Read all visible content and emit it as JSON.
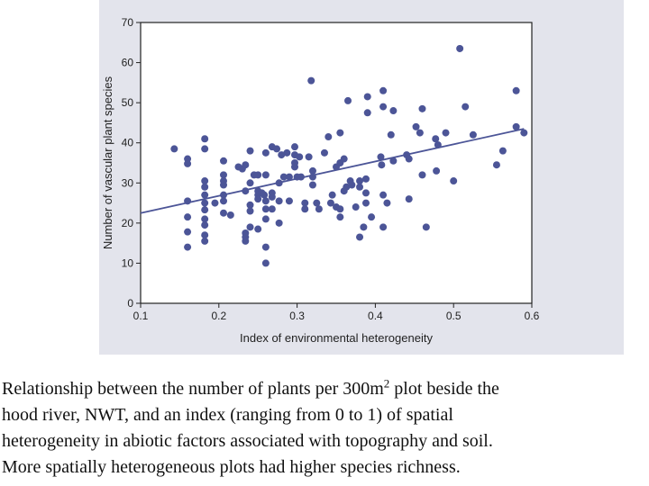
{
  "chart_data": {
    "type": "scatter",
    "xlabel": "Index of environmental heterogeneity",
    "ylabel": "Number of vascular plant species",
    "xlim": [
      0.1,
      0.6
    ],
    "ylim": [
      0,
      70
    ],
    "xticks": [
      "0.1",
      "0.2",
      "0.3",
      "0.4",
      "0.5",
      "0.6"
    ],
    "yticks": [
      "0",
      "10",
      "20",
      "30",
      "40",
      "50",
      "60",
      "70"
    ],
    "trendline": {
      "x": [
        0.1,
        0.59
      ],
      "y": [
        22.5,
        43.5
      ]
    },
    "points": [
      [
        0.143,
        38.5
      ],
      [
        0.16,
        36
      ],
      [
        0.16,
        34.8
      ],
      [
        0.16,
        25.5
      ],
      [
        0.16,
        21.5
      ],
      [
        0.16,
        17.8
      ],
      [
        0.16,
        14
      ],
      [
        0.182,
        41
      ],
      [
        0.182,
        38.5
      ],
      [
        0.182,
        30.5
      ],
      [
        0.182,
        29
      ],
      [
        0.182,
        27
      ],
      [
        0.182,
        25
      ],
      [
        0.182,
        23.3
      ],
      [
        0.182,
        21
      ],
      [
        0.182,
        19.5
      ],
      [
        0.182,
        17
      ],
      [
        0.182,
        15.5
      ],
      [
        0.195,
        25
      ],
      [
        0.206,
        35.5
      ],
      [
        0.206,
        32
      ],
      [
        0.206,
        30.5
      ],
      [
        0.206,
        29.5
      ],
      [
        0.206,
        27
      ],
      [
        0.206,
        25.5
      ],
      [
        0.206,
        22.5
      ],
      [
        0.215,
        22
      ],
      [
        0.225,
        34
      ],
      [
        0.23,
        33.5
      ],
      [
        0.234,
        34.5
      ],
      [
        0.234,
        28
      ],
      [
        0.234,
        17.5
      ],
      [
        0.234,
        16.5
      ],
      [
        0.234,
        15.5
      ],
      [
        0.24,
        38
      ],
      [
        0.24,
        30
      ],
      [
        0.24,
        24.5
      ],
      [
        0.24,
        23
      ],
      [
        0.24,
        19
      ],
      [
        0.245,
        32
      ],
      [
        0.25,
        32
      ],
      [
        0.25,
        28
      ],
      [
        0.25,
        27
      ],
      [
        0.25,
        26
      ],
      [
        0.25,
        18.5
      ],
      [
        0.255,
        27.5
      ],
      [
        0.258,
        27
      ],
      [
        0.26,
        37.5
      ],
      [
        0.26,
        32
      ],
      [
        0.26,
        25.5
      ],
      [
        0.26,
        23.5
      ],
      [
        0.26,
        21
      ],
      [
        0.26,
        14
      ],
      [
        0.26,
        10
      ],
      [
        0.268,
        39
      ],
      [
        0.268,
        27.5
      ],
      [
        0.268,
        26.5
      ],
      [
        0.268,
        23.5
      ],
      [
        0.274,
        38.5
      ],
      [
        0.277,
        30
      ],
      [
        0.277,
        25.5
      ],
      [
        0.277,
        20
      ],
      [
        0.28,
        37
      ],
      [
        0.283,
        31.5
      ],
      [
        0.287,
        37.5
      ],
      [
        0.29,
        25.5
      ],
      [
        0.29,
        31.5
      ],
      [
        0.297,
        39
      ],
      [
        0.297,
        37
      ],
      [
        0.297,
        35
      ],
      [
        0.297,
        34
      ],
      [
        0.3,
        31.5
      ],
      [
        0.303,
        36.5
      ],
      [
        0.305,
        31.5
      ],
      [
        0.31,
        25
      ],
      [
        0.31,
        23.5
      ],
      [
        0.315,
        36.5
      ],
      [
        0.318,
        55.5
      ],
      [
        0.32,
        33
      ],
      [
        0.32,
        31.5
      ],
      [
        0.32,
        29.5
      ],
      [
        0.325,
        25
      ],
      [
        0.328,
        23.5
      ],
      [
        0.335,
        37.5
      ],
      [
        0.34,
        41.5
      ],
      [
        0.343,
        25
      ],
      [
        0.345,
        27
      ],
      [
        0.35,
        34
      ],
      [
        0.35,
        24
      ],
      [
        0.355,
        42.5
      ],
      [
        0.355,
        35
      ],
      [
        0.355,
        23.5
      ],
      [
        0.355,
        21.5
      ],
      [
        0.36,
        36
      ],
      [
        0.36,
        28
      ],
      [
        0.363,
        29
      ],
      [
        0.365,
        50.5
      ],
      [
        0.368,
        30.5
      ],
      [
        0.37,
        29.5
      ],
      [
        0.375,
        24
      ],
      [
        0.38,
        30.5
      ],
      [
        0.38,
        29
      ],
      [
        0.38,
        16.5
      ],
      [
        0.385,
        19
      ],
      [
        0.388,
        31
      ],
      [
        0.388,
        27.5
      ],
      [
        0.388,
        25
      ],
      [
        0.39,
        51.5
      ],
      [
        0.39,
        47.5
      ],
      [
        0.395,
        21.5
      ],
      [
        0.407,
        36.5
      ],
      [
        0.408,
        34.5
      ],
      [
        0.41,
        53
      ],
      [
        0.41,
        49
      ],
      [
        0.41,
        27
      ],
      [
        0.41,
        19
      ],
      [
        0.415,
        25
      ],
      [
        0.42,
        42
      ],
      [
        0.423,
        48
      ],
      [
        0.423,
        35.5
      ],
      [
        0.44,
        37
      ],
      [
        0.443,
        36
      ],
      [
        0.443,
        26
      ],
      [
        0.452,
        44
      ],
      [
        0.457,
        42.5
      ],
      [
        0.46,
        48.5
      ],
      [
        0.46,
        32
      ],
      [
        0.465,
        19
      ],
      [
        0.477,
        41
      ],
      [
        0.478,
        33
      ],
      [
        0.48,
        39.5
      ],
      [
        0.49,
        42.5
      ],
      [
        0.5,
        30.5
      ],
      [
        0.508,
        63.5
      ],
      [
        0.515,
        49
      ],
      [
        0.525,
        42
      ],
      [
        0.555,
        34.5
      ],
      [
        0.563,
        38
      ],
      [
        0.58,
        53
      ],
      [
        0.58,
        44
      ],
      [
        0.59,
        42.5
      ]
    ]
  },
  "caption": {
    "line1_before": "Relationship between the number of plants per 300m",
    "line1_sup": "2",
    "line1_after": " plot beside the",
    "line2": "hood river, NWT, and an index (ranging from 0 to 1) of spatial",
    "line3": "heterogeneity in abiotic factors associated with topography and soil.",
    "line4": "More spatially heterogeneous plots had higher species richness."
  },
  "colors": {
    "panel": "#e3e4ec",
    "point": "#4c5597",
    "line": "#4c5597",
    "axis": "#222222"
  }
}
